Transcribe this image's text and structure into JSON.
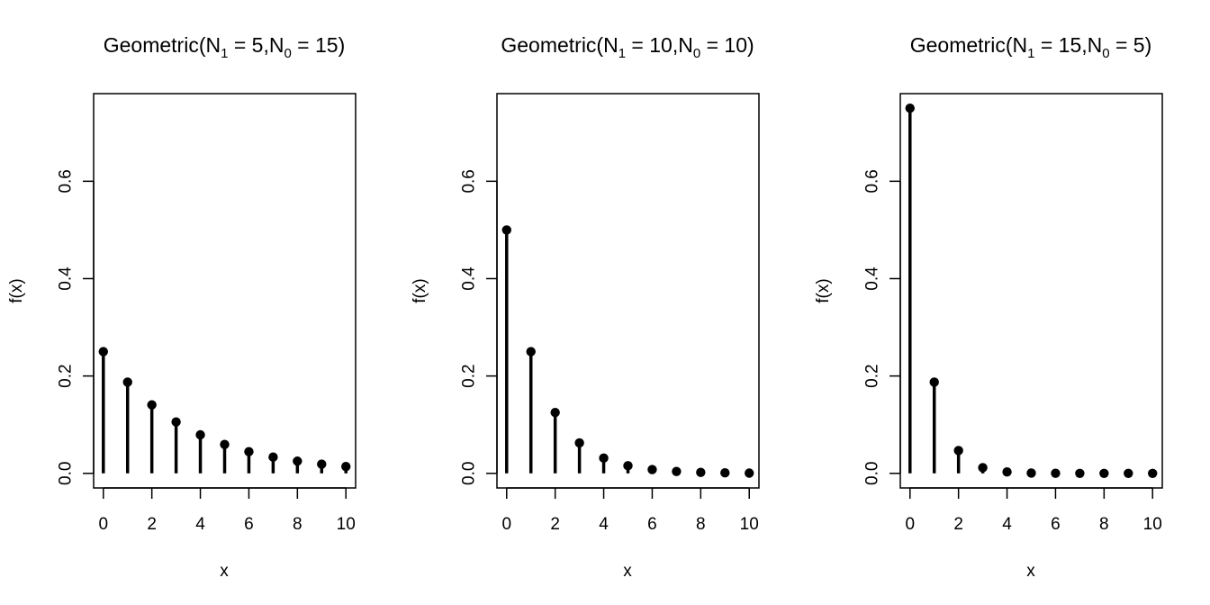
{
  "figure": {
    "background": "#ffffff",
    "foreground": "#000000"
  },
  "chart_data": [
    {
      "type": "lollipop",
      "title": {
        "prefix": "Geometric(N",
        "sub1": "1",
        "mid1": " = 5,N",
        "sub2": "0",
        "suffix": " = 15)"
      },
      "xlabel": "x",
      "ylabel": "f(x)",
      "xlim": [
        -0.4,
        10.4
      ],
      "ylim": [
        -0.03,
        0.78
      ],
      "x_ticks": [
        0,
        2,
        4,
        6,
        8,
        10
      ],
      "y_ticks": [
        0.0,
        0.2,
        0.4,
        0.6
      ],
      "y_tick_labels": [
        "0.0",
        "0.2",
        "0.4",
        "0.6"
      ],
      "x": [
        0,
        1,
        2,
        3,
        4,
        5,
        6,
        7,
        8,
        9,
        10
      ],
      "y": [
        0.25,
        0.1875,
        0.1406,
        0.1055,
        0.0791,
        0.0593,
        0.0445,
        0.0334,
        0.025,
        0.0188,
        0.0141
      ]
    },
    {
      "type": "lollipop",
      "title": {
        "prefix": "Geometric(N",
        "sub1": "1",
        "mid1": " = 10,N",
        "sub2": "0",
        "suffix": " = 10)"
      },
      "xlabel": "x",
      "ylabel": "f(x)",
      "xlim": [
        -0.4,
        10.4
      ],
      "ylim": [
        -0.03,
        0.78
      ],
      "x_ticks": [
        0,
        2,
        4,
        6,
        8,
        10
      ],
      "y_ticks": [
        0.0,
        0.2,
        0.4,
        0.6
      ],
      "y_tick_labels": [
        "0.0",
        "0.2",
        "0.4",
        "0.6"
      ],
      "x": [
        0,
        1,
        2,
        3,
        4,
        5,
        6,
        7,
        8,
        9,
        10
      ],
      "y": [
        0.5,
        0.25,
        0.125,
        0.0625,
        0.0313,
        0.0156,
        0.0078,
        0.0039,
        0.002,
        0.001,
        0.0005
      ]
    },
    {
      "type": "lollipop",
      "title": {
        "prefix": "Geometric(N",
        "sub1": "1",
        "mid1": " = 15,N",
        "sub2": "0",
        "suffix": " = 5)"
      },
      "xlabel": "x",
      "ylabel": "f(x)",
      "xlim": [
        -0.4,
        10.4
      ],
      "ylim": [
        -0.03,
        0.78
      ],
      "x_ticks": [
        0,
        2,
        4,
        6,
        8,
        10
      ],
      "y_ticks": [
        0.0,
        0.2,
        0.4,
        0.6
      ],
      "y_tick_labels": [
        "0.0",
        "0.2",
        "0.4",
        "0.6"
      ],
      "x": [
        0,
        1,
        2,
        3,
        4,
        5,
        6,
        7,
        8,
        9,
        10
      ],
      "y": [
        0.75,
        0.1875,
        0.0469,
        0.0117,
        0.0029,
        0.0007,
        0.0002,
        0.0,
        0.0,
        0.0,
        0.0
      ]
    }
  ]
}
